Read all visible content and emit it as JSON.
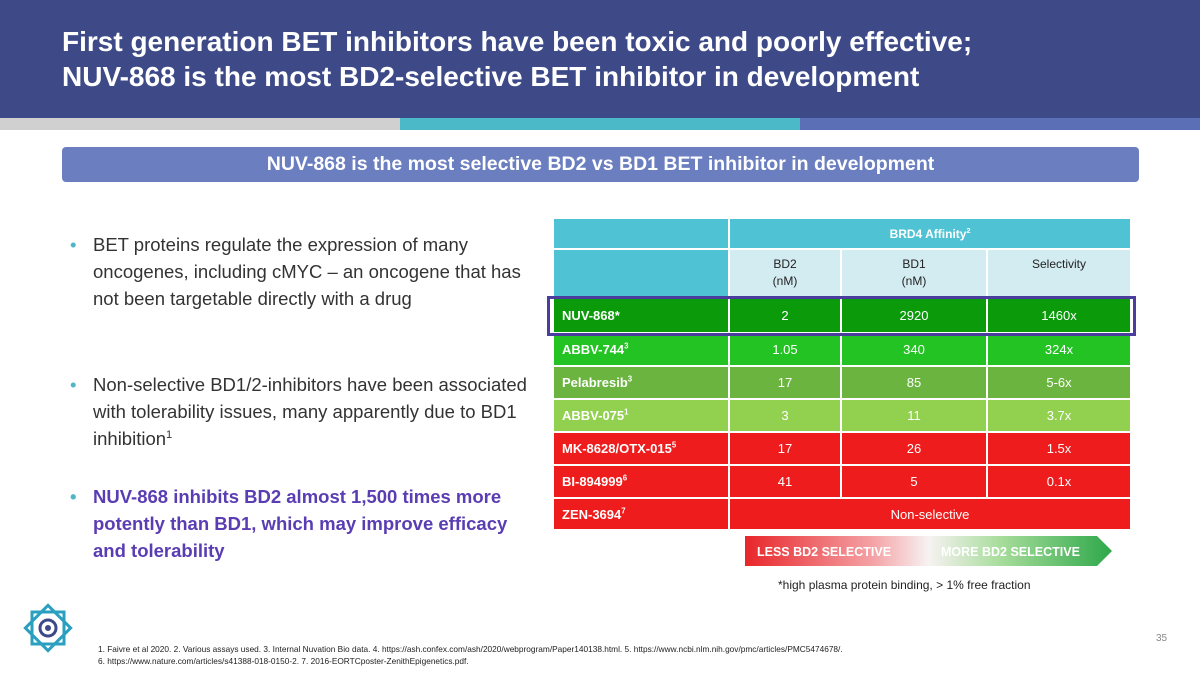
{
  "header": {
    "title_lines": [
      "First generation BET inhibitors have been toxic and poorly effective;",
      "NUV-868 is the most BD2-selective BET inhibitor in development"
    ]
  },
  "banner": "NUV-868 is the most selective BD2 vs BD1 BET inhibitor in development",
  "bullets": [
    {
      "text": "BET proteins regulate the expression of many oncogenes, including cMYC – an oncogene that has not been targetable directly with a drug"
    },
    {
      "text": "Non-selective BD1/2-inhibitors have been associated with tolerability issues, many apparently due to BD1 inhibition",
      "sup": "1"
    },
    {
      "text": "NUV-868 inhibits BD2 almost 1,500 times more potently than BD1, which may improve efficacy and tolerability"
    }
  ],
  "table": {
    "group_header": {
      "text": "BRD4 Affinity",
      "sup": "2"
    },
    "columns": [
      [
        "BD2",
        "(nM)"
      ],
      [
        "BD1",
        "(nM)"
      ],
      [
        "Selectivity"
      ]
    ],
    "rows": [
      {
        "name": "NUV-868*",
        "cells": [
          "2",
          "2920",
          "1460x"
        ]
      },
      {
        "name": "ABBV-744",
        "sup": "3",
        "cells": [
          "1.05",
          "340",
          "324x"
        ]
      },
      {
        "name": "Pelabresib",
        "sup": "3",
        "cells": [
          "17",
          "85",
          "5-6x"
        ]
      },
      {
        "name": "ABBV-075",
        "sup": "1",
        "cells": [
          "3",
          "11",
          "3.7x"
        ]
      },
      {
        "name": "MK-8628/OTX-015",
        "sup": "5",
        "cells": [
          "17",
          "26",
          "1.5x"
        ]
      },
      {
        "name": "BI-894999",
        "sup": "6",
        "cells": [
          "41",
          "5",
          "0.1x"
        ]
      },
      {
        "name": "ZEN-3694",
        "sup": "7",
        "cells": [
          "Non-selective"
        ]
      }
    ]
  },
  "scale": {
    "less": "LESS BD2 SELECTIVE",
    "more": "MORE BD2 SELECTIVE"
  },
  "table_note": "*high plasma protein binding, > 1% free fraction",
  "page_number": "35",
  "references": [
    "1. Faivre et al 2020. 2. Various assays used. 3.  Internal Nuvation Bio data. 4. https://ash.confex.com/ash/2020/webprogram/Paper140138.html. 5. https://www.ncbi.nlm.nih.gov/pmc/articles/PMC5474678/.",
    "6. https://www.nature.com/articles/s41388-018-0150-2. 7. 2016-EORTCposter-ZenithEpigenetics.pdf."
  ]
}
